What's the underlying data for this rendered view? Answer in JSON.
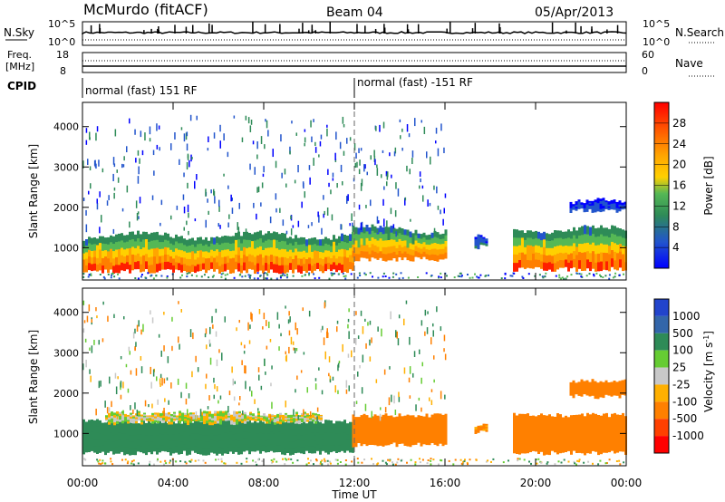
{
  "header": {
    "station": "McMurdo (fitACF)",
    "beam": "Beam 04",
    "date": "05/Apr/2013"
  },
  "left_labels": {
    "nsky": "N.Sky",
    "freq_line1": "Freq.",
    "freq_line2": "[MHz]",
    "cpid": "CPID"
  },
  "right_labels": {
    "nsearch": "N.Search",
    "nave": "Nave"
  },
  "noise_axis": {
    "top": "10^5",
    "bottom": "10^0",
    "right_top": "10^5",
    "right_bottom": "10^0"
  },
  "freq_axis": {
    "top": "18",
    "bottom": "8",
    "right_top": "60",
    "right_bottom": "0"
  },
  "cpid_segments": [
    {
      "label": "normal (fast) 151 RF",
      "start_hour": 0
    },
    {
      "label": "normal (fast) -151 RF",
      "start_hour": 12
    }
  ],
  "chart_data": [
    {
      "type": "heatmap",
      "name": "power",
      "ylabel": "Slant Range [km]",
      "xlabel": "",
      "ylim": [
        200,
        4600
      ],
      "xlim": [
        0,
        24
      ],
      "yticks": [
        "1000",
        "2000",
        "3000",
        "4000"
      ],
      "xticks": [
        "00:00",
        "04:00",
        "08:00",
        "12:00",
        "16:00",
        "20:00",
        "00:00"
      ],
      "colorbar": {
        "label": "Power [dB]",
        "ticks": [
          "28",
          "24",
          "20",
          "16",
          "12",
          "8",
          "4"
        ],
        "colors": [
          "#0000ff",
          "#2255cc",
          "#2e8b57",
          "#55b855",
          "#ffd000",
          "#ffa500",
          "#ff7f00",
          "#ff2000"
        ]
      },
      "regions": [
        {
          "t_start": 0.0,
          "t_end": 11.9,
          "r_low": 400,
          "r_high": 1300,
          "peak_db": 28
        },
        {
          "t_start": 11.9,
          "t_end": 16.0,
          "r_low": 700,
          "r_high": 1450,
          "peak_db": 26
        },
        {
          "t_start": 17.3,
          "t_end": 17.8,
          "r_low": 1000,
          "r_high": 1200,
          "peak_db": 8
        },
        {
          "t_start": 19.0,
          "t_end": 24.0,
          "r_low": 450,
          "r_high": 1450,
          "peak_db": 28
        },
        {
          "t_start": 21.5,
          "t_end": 24.0,
          "r_low": 1900,
          "r_high": 2100,
          "peak_db": 6
        }
      ]
    },
    {
      "type": "heatmap",
      "name": "velocity",
      "ylabel": "Slant Range [km]",
      "xlabel": "Time UT",
      "ylim": [
        200,
        4600
      ],
      "xlim": [
        0,
        24
      ],
      "yticks": [
        "1000",
        "2000",
        "3000",
        "4000"
      ],
      "xticks": [
        "00:00",
        "04:00",
        "08:00",
        "12:00",
        "16:00",
        "20:00",
        "00:00"
      ],
      "colorbar": {
        "label": "Velocity [m s^-1]",
        "ticks": [
          "1000",
          "500",
          "100",
          "25",
          "-25",
          "-100",
          "-500",
          "-1000"
        ],
        "colors": [
          "#2244cc",
          "#3366aa",
          "#2e8b57",
          "#66cc33",
          "#c8c8c8",
          "#ffb000",
          "#ff8000",
          "#ff4000",
          "#ff0000"
        ]
      },
      "regions": [
        {
          "t_start": 0.0,
          "t_end": 11.9,
          "r_low": 500,
          "r_high": 1300,
          "velocity": 300
        },
        {
          "t_start": 1.0,
          "t_end": 10.5,
          "r_low": 1250,
          "r_high": 1500,
          "velocity": 0
        },
        {
          "t_start": 11.9,
          "t_end": 16.0,
          "r_low": 700,
          "r_high": 1450,
          "velocity": -200
        },
        {
          "t_start": 17.3,
          "t_end": 17.8,
          "r_low": 1000,
          "r_high": 1200,
          "velocity": -150
        },
        {
          "t_start": 19.0,
          "t_end": 24.0,
          "r_low": 500,
          "r_high": 1450,
          "velocity": -250
        },
        {
          "t_start": 21.5,
          "t_end": 24.0,
          "r_low": 1900,
          "r_high": 2300,
          "velocity": -200
        }
      ]
    }
  ]
}
